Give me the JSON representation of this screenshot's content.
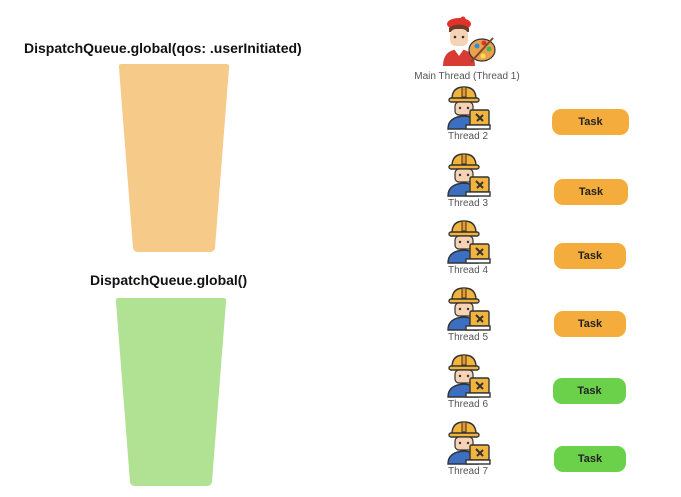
{
  "queues": [
    {
      "title": "DispatchQueue.global(qos: .userInitiated)",
      "color": "#f6ca88"
    },
    {
      "title": "DispatchQueue.global()",
      "color": "#b1e294"
    }
  ],
  "threads": [
    {
      "label": "Main Thread (Thread 1)",
      "icon": "painter-worker-icon"
    },
    {
      "label": "Thread 2",
      "icon": "worker-laptop-icon"
    },
    {
      "label": "Thread 3",
      "icon": "worker-laptop-icon"
    },
    {
      "label": "Thread 4",
      "icon": "worker-laptop-icon"
    },
    {
      "label": "Thread 5",
      "icon": "worker-laptop-icon"
    },
    {
      "label": "Thread 6",
      "icon": "worker-laptop-icon"
    },
    {
      "label": "Thread 7",
      "icon": "worker-laptop-icon"
    }
  ],
  "tasks": [
    {
      "label": "Task",
      "color": "#f4ad3d"
    },
    {
      "label": "Task",
      "color": "#f4ad3d"
    },
    {
      "label": "Task",
      "color": "#f4ad3d"
    },
    {
      "label": "Task",
      "color": "#f4ad3d"
    },
    {
      "label": "Task",
      "color": "#6cd14a"
    },
    {
      "label": "Task",
      "color": "#6cd14a"
    }
  ]
}
